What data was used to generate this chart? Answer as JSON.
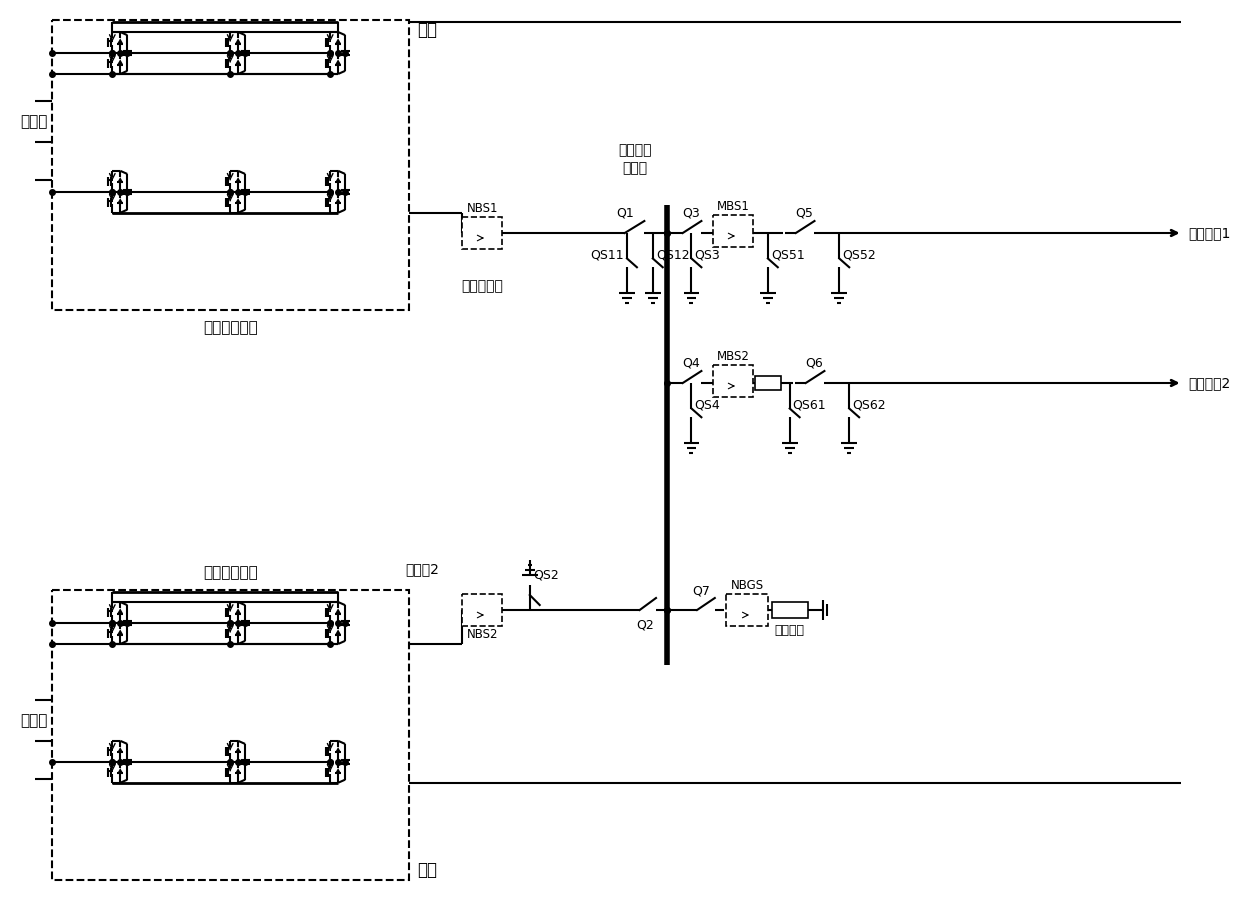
{
  "bg_color": "#ffffff",
  "line_color": "#000000",
  "labels": {
    "zhengji": "正极",
    "fuji": "负极",
    "jiaoliu_ce": "交流侧",
    "zhengji_unit": "正极换流单元",
    "fuji_unit": "负极换流单元",
    "zhengji_neutral": "正极中性线",
    "zhonxing_hui": "中性线汇\n流母线",
    "zhongxing2": "中性线2",
    "jinshu1": "金属回线1",
    "jinshu2": "金属回线2",
    "NBS1": "NBS1",
    "NBS2": "NBS2",
    "MBS1": "MBS1",
    "MBS2": "MBS2",
    "NBGS": "NBGS",
    "jiedian_dianzu": "接地电阻",
    "Q1": "Q1",
    "Q2": "Q2",
    "Q3": "Q3",
    "Q4": "Q4",
    "Q5": "Q5",
    "Q6": "Q6",
    "Q7": "Q7",
    "QS11": "QS11",
    "QS12": "QS12",
    "QS2": "QS2",
    "QS3": "QS3",
    "QS4": "QS4",
    "QS51": "QS51",
    "QS52": "QS52",
    "QS61": "QS61",
    "QS62": "QS62"
  }
}
